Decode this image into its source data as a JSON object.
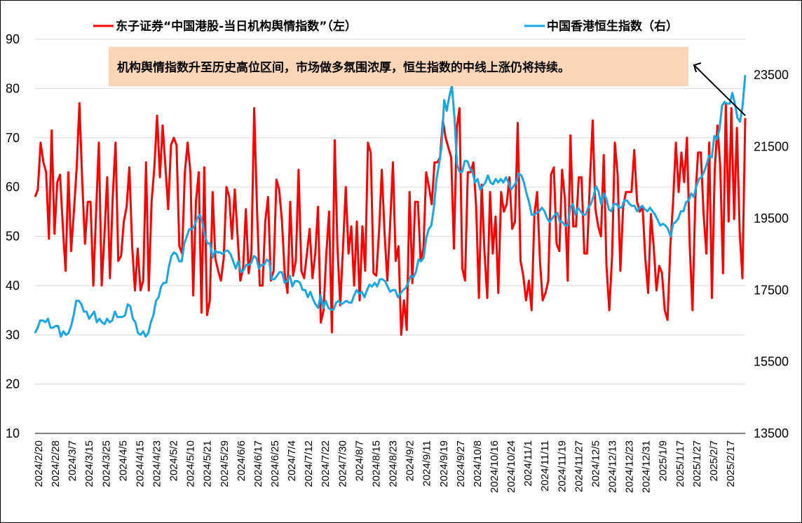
{
  "chart_data": {
    "type": "line",
    "dual_axis": true,
    "left_axis": {
      "ylim": [
        10,
        90
      ],
      "ticks": [
        10,
        20,
        30,
        40,
        50,
        60,
        70,
        80,
        90
      ]
    },
    "right_axis": {
      "ylim": [
        13500,
        24500
      ],
      "ticks": [
        13500,
        15500,
        17500,
        19500,
        21500,
        23500
      ]
    },
    "grid": "horizontal",
    "legend_position": "top",
    "x_tick_labels": [
      "2024/2/20",
      "2024/2/28",
      "2024/3/7",
      "2024/3/15",
      "2024/3/25",
      "2024/4/5",
      "2024/4/15",
      "2024/4/23",
      "2024/5/2",
      "2024/5/10",
      "2024/5/21",
      "2024/5/29",
      "2024/6/6",
      "2024/6/17",
      "2024/6/25",
      "2024/7/4",
      "2024/7/12",
      "2024/7/22",
      "2024/7/30",
      "2024/8/7",
      "2024/8/15",
      "2024/8/23",
      "2024/9/2",
      "2024/9/11",
      "2024/9/19",
      "2024/9/27",
      "2024/10/8",
      "2024/10/16",
      "2024/10/24",
      "2024/11/1",
      "2024/11/11",
      "2024/11/19",
      "2024/11/27",
      "2024/12/5",
      "2024/12/13",
      "2024/12/23",
      "2024/12/31",
      "2025/1/9",
      "2025/1/17",
      "2025/1/27",
      "2025/2/7",
      "2025/2/17"
    ],
    "series": [
      {
        "name": "东子证券“中国港股-当日机构舆情指数”（左）",
        "axis": "left",
        "color": "#ff0000",
        "values": [
          58,
          59.5,
          69,
          65,
          63,
          49.5,
          71.5,
          50.5,
          61,
          62.5,
          52,
          43,
          63,
          47,
          55,
          64,
          77,
          61,
          48.5,
          57,
          57,
          40,
          55,
          69,
          40,
          50,
          62,
          41.5,
          58,
          69,
          45,
          46,
          53,
          56,
          64,
          48,
          39,
          47.5,
          39,
          41,
          65,
          39,
          57,
          64,
          74.5,
          62,
          72.5,
          64,
          55.5,
          68.5,
          70,
          68.5,
          48,
          46.5,
          63,
          69,
          63,
          38,
          57,
          63,
          34.5,
          64,
          34,
          37,
          59,
          45.5,
          43,
          41,
          45.5,
          60,
          58,
          49.5,
          59.5,
          50,
          41,
          43.5,
          55.5,
          42.5,
          46.5,
          76,
          55.5,
          40,
          40,
          53,
          58,
          41,
          43,
          61.5,
          59.5,
          53,
          42.5,
          38.5,
          57,
          42,
          45,
          63.5,
          43,
          41.5,
          46.5,
          51.5,
          41.5,
          46.5,
          56,
          32.5,
          35,
          46.5,
          55,
          30.5,
          69.5,
          48,
          36,
          47.5,
          60,
          46.5,
          52,
          40,
          53,
          37,
          52,
          43,
          69,
          67,
          42.5,
          42,
          51,
          63.5,
          50.5,
          41,
          52.5,
          65,
          45,
          48,
          30,
          37,
          31,
          59,
          40.5,
          57,
          57,
          45,
          47.5,
          63,
          60,
          56.5,
          65,
          65,
          66,
          73.5,
          70,
          68,
          66,
          47.5,
          72,
          76,
          43.5,
          41,
          63,
          63,
          65,
          56,
          37.5,
          60.5,
          47,
          37.5,
          59,
          46.5,
          54,
          38.5,
          59,
          55,
          56.5,
          62,
          51.5,
          53,
          73,
          45,
          42,
          37,
          41,
          35,
          54.5,
          59,
          45,
          37,
          38.5,
          41,
          62.5,
          64,
          48.5,
          47,
          63.5,
          57.5,
          41,
          70.5,
          52,
          52,
          62,
          62,
          46.5,
          46.5,
          61,
          73.5,
          55.5,
          52,
          50,
          66.5,
          44,
          35,
          46,
          69,
          62.5,
          43,
          56,
          59,
          59,
          59,
          67.5,
          57,
          55,
          56,
          45.5,
          38.5,
          54.5,
          48,
          39,
          44,
          42.5,
          35,
          33,
          48,
          57,
          69,
          59,
          67,
          61,
          70,
          48,
          35,
          57.5,
          67,
          67,
          54.5,
          46.5,
          69,
          37.5,
          63.5,
          72.5,
          64,
          42.5,
          77,
          53,
          76,
          53.5,
          72,
          51,
          41.5,
          74
        ]
      },
      {
        "name": "中国香港恒生指数（右）",
        "axis": "right",
        "color": "#1aa7e0",
        "values": [
          16300,
          16450,
          16650,
          16650,
          16600,
          16700,
          16450,
          16450,
          16500,
          16500,
          16200,
          16350,
          16250,
          16300,
          16500,
          16800,
          17200,
          17200,
          17100,
          16900,
          16900,
          16700,
          16800,
          16900,
          16600,
          16700,
          16600,
          16550,
          16700,
          16600,
          16650,
          16900,
          16750,
          16750,
          16750,
          16800,
          17100,
          17050,
          16700,
          16600,
          16300,
          16250,
          16350,
          16200,
          16300,
          16600,
          16800,
          17200,
          17300,
          17600,
          17700,
          17700,
          18150,
          18450,
          18550,
          18500,
          18300,
          18300,
          18800,
          19000,
          19200,
          19200,
          19300,
          19500,
          19600,
          19400,
          19000,
          18800,
          18800,
          18400,
          18600,
          18550,
          18550,
          18500,
          18600,
          18600,
          18500,
          18300,
          18100,
          18300,
          18000,
          18050,
          18200,
          18200,
          18250,
          18450,
          18400,
          18100,
          18200,
          18200,
          18350,
          18300,
          17800,
          17800,
          17900,
          18000,
          18000,
          17700,
          17750,
          17900,
          17600,
          17750,
          17750,
          17700,
          17500,
          17500,
          17300,
          17450,
          17250,
          17100,
          17000,
          17350,
          17000,
          17200,
          17000,
          16950,
          16950,
          17150,
          17200,
          17100,
          17150,
          17200,
          17150,
          17150,
          17350,
          17500,
          17400,
          17450,
          17300,
          17500,
          17650,
          17600,
          17700,
          17600,
          17800,
          17800,
          17750,
          17600,
          17450,
          17500,
          17500,
          17300,
          17400,
          17500,
          17550,
          17700,
          17900,
          17850,
          18000,
          18350,
          18300,
          18400,
          18950,
          19200,
          19300,
          19800,
          20600,
          21000,
          21500,
          22800,
          22500,
          22900,
          23200,
          22300,
          21000,
          20800,
          20800,
          21100,
          21100,
          20900,
          20800,
          20500,
          20600,
          20300,
          20400,
          20500,
          20700,
          20500,
          20450,
          20600,
          20500,
          20600,
          20500,
          20650,
          20500,
          20300,
          20400,
          20500,
          20750,
          20700,
          20500,
          20200,
          19950,
          19600,
          19600,
          19650,
          19700,
          19800,
          19700,
          19500,
          19400,
          19500,
          19600,
          19650,
          19400,
          19400,
          19300,
          19300,
          19800,
          19900,
          19600,
          19800,
          19700,
          19600,
          19600,
          19800,
          19900,
          20100,
          20400,
          20250,
          19900,
          20200,
          20050,
          19750,
          19700,
          19900,
          19900,
          19800,
          19800,
          20000,
          20000,
          19900,
          19850,
          19850,
          19700,
          19800,
          19850,
          19750,
          19700,
          19800,
          19700,
          19600,
          19450,
          19300,
          19350,
          19300,
          19200,
          19000,
          19350,
          19400,
          19500,
          19700,
          19700,
          19950,
          20000,
          20200,
          20100,
          20400,
          20600,
          20650,
          20800,
          21000,
          21250,
          21200,
          21800,
          21700,
          22000,
          22650,
          22750,
          22700,
          22700,
          23000,
          22700,
          22300,
          22200,
          22650,
          23500
        ]
      }
    ],
    "annotation": "机构舆情指数升至历史高位区间，市场做多氛围浓厚，恒生指数的中线上涨仍将持续。",
    "colors": {
      "annotation_bg": "#fbd5b5",
      "axis": "#000000",
      "grid": "#d9d9d9"
    }
  }
}
